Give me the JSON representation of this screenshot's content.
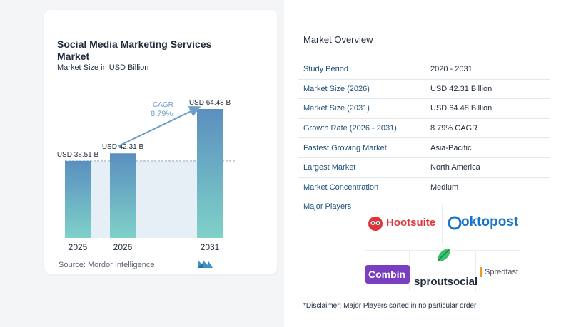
{
  "chart": {
    "title": "Social Media Marketing Services Market",
    "subtitle": "Market Size in USD Billion",
    "source": "Source:  Mordor Intelligence",
    "cagr_label": "CAGR",
    "cagr_value": "8.79%"
  },
  "chart_data": {
    "type": "bar",
    "categories": [
      "2025",
      "2026",
      "2031"
    ],
    "values": [
      38.51,
      42.31,
      64.48
    ],
    "data_labels": [
      "USD 38.51 B",
      "USD 42.31 B",
      "USD 64.48 B"
    ],
    "title": "Social Media Marketing Services Market",
    "subtitle": "Market Size in USD Billion",
    "ylabel": "",
    "xlabel": "",
    "ylim": [
      0,
      70
    ],
    "annotation": "CAGR 8.79%",
    "colors": {
      "bar_top": "#5a8fbf",
      "bar_bottom": "#7fd1c9",
      "shade": "#e6eef6",
      "dashed_line": "#8fa9c4",
      "arrow": "#6c9ec8"
    }
  },
  "overview": {
    "title": "Market Overview",
    "rows": [
      {
        "label": "Study Period",
        "value": "2020 - 2031"
      },
      {
        "label": "Market Size (2026)",
        "value": "USD 42.31 Billion"
      },
      {
        "label": "Market Size (2031)",
        "value": "USD 64.48 Billion"
      },
      {
        "label": "Growth Rate (2026 - 2031)",
        "value": "8.79% CAGR"
      },
      {
        "label": "Fastest Growing Market",
        "value": "Asia-Pacific"
      },
      {
        "label": "Largest Market",
        "value": "North America"
      },
      {
        "label": "Market Concentration",
        "value": "Medium"
      }
    ]
  },
  "players": {
    "label": "Major Players",
    "logos": {
      "hootsuite": "Hootsuite",
      "oktopost": "oktopost",
      "combin": "Combin",
      "sprout": "sproutsocial",
      "spredfast": "Spredfast"
    }
  },
  "disclaimer": "*Disclaimer: Major Players sorted in no particular order"
}
